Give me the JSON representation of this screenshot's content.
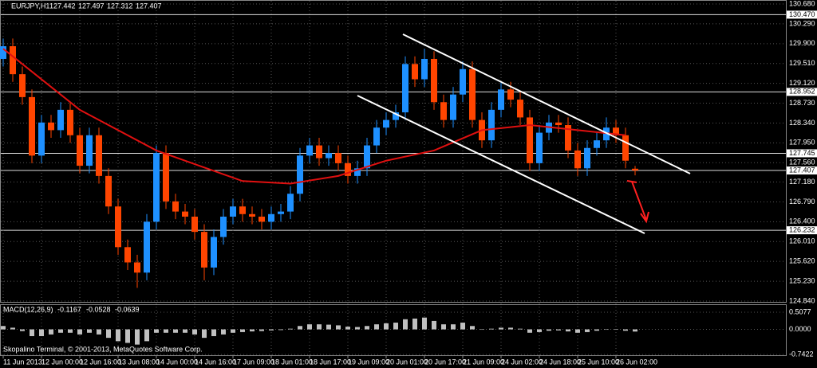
{
  "chart_data": {
    "type": "candlestick",
    "title": "EURJPY,H1",
    "quote": [
      127.442,
      127.497,
      127.312,
      127.407
    ],
    "up_color": "#1e90ff",
    "down_color": "#ff4500",
    "grid": true,
    "ylim": [
      124.84,
      130.68
    ],
    "yticks": [
      {
        "value": 130.68,
        "label": "130.680"
      },
      {
        "value": 130.29,
        "label": "130.290"
      },
      {
        "value": 129.9,
        "label": "129.900"
      },
      {
        "value": 129.51,
        "label": "129.510"
      },
      {
        "value": 129.12,
        "label": "129.120"
      },
      {
        "value": 128.73,
        "label": "128.730"
      },
      {
        "value": 128.34,
        "label": "128.340"
      },
      {
        "value": 127.95,
        "label": "127.950"
      },
      {
        "value": 127.56,
        "label": "127.560"
      },
      {
        "value": 127.18,
        "label": "127.180"
      },
      {
        "value": 126.79,
        "label": "126.790"
      },
      {
        "value": 126.4,
        "label": "126.400"
      },
      {
        "value": 126.01,
        "label": "126.010"
      },
      {
        "value": 125.62,
        "label": "125.620"
      },
      {
        "value": 125.23,
        "label": "125.230"
      },
      {
        "value": 124.84,
        "label": "124.840"
      }
    ],
    "levels": [
      {
        "value": 130.47,
        "label": "130.470"
      },
      128.952,
      127.745,
      127.407,
      126.232
    ],
    "categories": [
      "11 Jun 2013",
      null,
      null,
      null,
      "12 Jun 00:00",
      null,
      null,
      null,
      "12 Jun 16:00",
      null,
      null,
      null,
      "13 Jun 08:00",
      null,
      null,
      null,
      "14 Jun 00:00",
      null,
      null,
      null,
      "14 Jun 16:00",
      null,
      null,
      null,
      "17 Jun 09:00",
      null,
      null,
      null,
      "18 Jun 01:00",
      null,
      null,
      null,
      "18 Jun 17:00",
      null,
      null,
      null,
      "19 Jun 09:00",
      null,
      null,
      null,
      "20 Jun 01:00",
      null,
      null,
      null,
      "20 Jun 17:00",
      null,
      null,
      null,
      "21 Jun 09:00",
      null,
      null,
      null,
      "24 Jun 02:00",
      null,
      null,
      null,
      "24 Jun 18:00",
      null,
      null,
      null,
      "25 Jun 10:00",
      null,
      null,
      null,
      "26 Jun 02:00",
      null,
      null
    ],
    "candles": [
      [
        129.6,
        130.0,
        129.45,
        129.85
      ],
      [
        129.85,
        130.0,
        129.15,
        129.3
      ],
      [
        129.3,
        129.45,
        128.7,
        128.85
      ],
      [
        128.85,
        129.0,
        127.55,
        127.7
      ],
      [
        127.7,
        128.5,
        127.55,
        128.35
      ],
      [
        128.35,
        128.5,
        128.05,
        128.2
      ],
      [
        128.2,
        128.75,
        128.05,
        128.6
      ],
      [
        128.6,
        128.75,
        127.95,
        128.1
      ],
      [
        128.1,
        128.25,
        127.35,
        127.5
      ],
      [
        127.5,
        128.25,
        127.35,
        128.1
      ],
      [
        128.1,
        128.25,
        127.15,
        127.3
      ],
      [
        127.3,
        127.45,
        126.55,
        126.7
      ],
      [
        126.7,
        126.85,
        125.75,
        125.9
      ],
      [
        125.9,
        126.05,
        125.45,
        125.6
      ],
      [
        125.6,
        125.75,
        125.1,
        125.4
      ],
      [
        125.4,
        126.55,
        125.25,
        126.4
      ],
      [
        126.4,
        127.9,
        126.25,
        127.75
      ],
      [
        127.75,
        127.9,
        126.65,
        126.8
      ],
      [
        126.8,
        126.95,
        126.45,
        126.6
      ],
      [
        126.6,
        126.75,
        126.35,
        126.5
      ],
      [
        126.5,
        126.65,
        126.05,
        126.2
      ],
      [
        126.2,
        126.35,
        125.25,
        125.5
      ],
      [
        125.5,
        126.25,
        125.35,
        126.1
      ],
      [
        126.1,
        126.65,
        125.95,
        126.5
      ],
      [
        126.5,
        126.85,
        126.35,
        126.7
      ],
      [
        126.7,
        126.85,
        126.4,
        126.55
      ],
      [
        126.55,
        126.7,
        126.35,
        126.5
      ],
      [
        126.5,
        126.65,
        126.25,
        126.4
      ],
      [
        126.4,
        126.7,
        126.25,
        126.55
      ],
      [
        126.55,
        126.75,
        126.4,
        126.6
      ],
      [
        126.6,
        127.1,
        126.45,
        126.95
      ],
      [
        126.95,
        127.85,
        126.8,
        127.7
      ],
      [
        127.7,
        128.05,
        127.55,
        127.9
      ],
      [
        127.9,
        128.05,
        127.5,
        127.65
      ],
      [
        127.65,
        127.9,
        127.5,
        127.75
      ],
      [
        127.75,
        127.9,
        127.4,
        127.55
      ],
      [
        127.55,
        127.7,
        127.15,
        127.3
      ],
      [
        127.3,
        127.6,
        127.15,
        127.45
      ],
      [
        127.45,
        128.05,
        127.3,
        127.9
      ],
      [
        127.9,
        128.4,
        127.75,
        128.25
      ],
      [
        128.25,
        128.55,
        128.1,
        128.4
      ],
      [
        128.4,
        128.7,
        128.25,
        128.55
      ],
      [
        128.55,
        129.65,
        128.4,
        129.5
      ],
      [
        129.5,
        129.65,
        129.05,
        129.2
      ],
      [
        129.2,
        129.8,
        129.05,
        129.6
      ],
      [
        129.6,
        129.75,
        128.6,
        128.75
      ],
      [
        128.75,
        128.9,
        128.25,
        128.4
      ],
      [
        128.4,
        129.05,
        128.25,
        128.9
      ],
      [
        128.9,
        129.55,
        128.75,
        129.4
      ],
      [
        129.4,
        129.55,
        128.25,
        128.4
      ],
      [
        128.4,
        128.55,
        127.85,
        128.0
      ],
      [
        128.0,
        128.75,
        127.85,
        128.6
      ],
      [
        128.6,
        129.15,
        128.45,
        129.0
      ],
      [
        129.0,
        129.15,
        128.65,
        128.8
      ],
      [
        128.8,
        128.95,
        128.3,
        128.45
      ],
      [
        128.45,
        128.6,
        127.4,
        127.55
      ],
      [
        127.55,
        128.3,
        127.4,
        128.15
      ],
      [
        128.15,
        128.5,
        128.0,
        128.35
      ],
      [
        128.35,
        128.5,
        128.15,
        128.3
      ],
      [
        128.3,
        128.45,
        127.65,
        127.8
      ],
      [
        127.8,
        127.95,
        127.3,
        127.45
      ],
      [
        127.45,
        128.0,
        127.3,
        127.85
      ],
      [
        127.85,
        128.15,
        127.7,
        128.0
      ],
      [
        128.0,
        128.45,
        127.85,
        128.25
      ],
      [
        128.25,
        128.4,
        127.95,
        128.1
      ],
      [
        128.1,
        128.25,
        127.45,
        127.6
      ],
      [
        127.442,
        127.497,
        127.312,
        127.407
      ]
    ],
    "moving_average": {
      "color": "#e01010",
      "x": [
        0,
        8,
        16,
        25,
        30,
        35,
        40,
        45,
        50,
        55,
        60,
        65
      ],
      "values": [
        129.8,
        128.6,
        127.8,
        127.2,
        127.15,
        127.3,
        127.6,
        127.8,
        128.2,
        128.3,
        128.2,
        128.1
      ]
    },
    "macd": {
      "title": "MACD(12,26,9)",
      "readout": [
        -0.1167,
        -0.0528,
        -0.0639
      ],
      "ylim": [
        -0.7422,
        0.5077
      ],
      "yticks": [
        0.5077,
        {
          "value": 0,
          "label": "0.0000"
        },
        -0.7422
      ],
      "color": "#c0c0c0",
      "values": [
        0.1,
        0.05,
        -0.05,
        -0.2,
        -0.2,
        -0.15,
        -0.1,
        -0.1,
        -0.15,
        -0.1,
        -0.15,
        -0.25,
        -0.35,
        -0.4,
        -0.45,
        -0.35,
        -0.1,
        -0.1,
        -0.1,
        -0.1,
        -0.15,
        -0.25,
        -0.2,
        -0.15,
        -0.1,
        -0.08,
        -0.06,
        -0.05,
        -0.03,
        -0.02,
        0.02,
        0.1,
        0.15,
        0.15,
        0.14,
        0.12,
        0.08,
        0.07,
        0.1,
        0.15,
        0.18,
        0.2,
        0.3,
        0.32,
        0.35,
        0.25,
        0.15,
        0.15,
        0.2,
        0.1,
        0.0,
        0.02,
        0.05,
        0.05,
        0.02,
        -0.1,
        -0.08,
        -0.04,
        -0.03,
        -0.06,
        -0.1,
        -0.08,
        -0.04,
        0.0,
        0.0,
        -0.04,
        -0.0639
      ]
    },
    "copyright": "Skopalino Terminal, © 2001-2013, MetaQuotes Software Corp."
  }
}
